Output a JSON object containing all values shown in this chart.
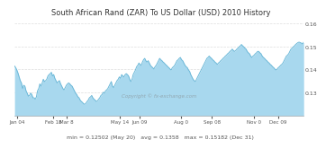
{
  "title": "South African Rand (ZAR) To US Dollar (USD) 2010 History",
  "title_fontsize": 6.0,
  "ylim": [
    0.12,
    0.16
  ],
  "yticks": [
    0.13,
    0.14,
    0.15,
    0.16
  ],
  "ytick_top": 0.16,
  "line_color": "#6bb8d8",
  "fill_color": "#a8d8ee",
  "background_color": "#ffffff",
  "grid_color": "#dddddd",
  "footer_text": "min = 0.12502 (May 20)   avg = 0.1358   max = 0.15182 (Dec 31)",
  "footer_fontsize": 4.5,
  "watermark": "Copyright © fx-exchange.com",
  "x_tick_labels": [
    "Jan 04",
    "Feb 18",
    "Mar 8",
    "May 14",
    "Jun 09",
    "Aug 0",
    "Sep 08",
    "Nov 0",
    "Dec 09"
  ],
  "x_tick_fracs": [
    0.008,
    0.133,
    0.18,
    0.364,
    0.434,
    0.575,
    0.682,
    0.829,
    0.912
  ],
  "values": [
    0.1415,
    0.1408,
    0.1398,
    0.1385,
    0.1368,
    0.1352,
    0.1342,
    0.1318,
    0.1332,
    0.1328,
    0.1308,
    0.1298,
    0.1285,
    0.1288,
    0.1298,
    0.1292,
    0.1278,
    0.1278,
    0.1272,
    0.1282,
    0.1308,
    0.1318,
    0.1338,
    0.1328,
    0.1342,
    0.1358,
    0.1348,
    0.1352,
    0.1358,
    0.1372,
    0.1378,
    0.1382,
    0.1388,
    0.1372,
    0.1378,
    0.1362,
    0.1352,
    0.1342,
    0.1348,
    0.1352,
    0.1338,
    0.1328,
    0.1318,
    0.1312,
    0.1322,
    0.1332,
    0.1338,
    0.1342,
    0.1338,
    0.1332,
    0.1328,
    0.1318,
    0.1308,
    0.1298,
    0.1292,
    0.1282,
    0.1278,
    0.1268,
    0.1262,
    0.1258,
    0.1252,
    0.125,
    0.1255,
    0.1262,
    0.1268,
    0.1278,
    0.1282,
    0.1288,
    0.1278,
    0.1272,
    0.1268,
    0.1262,
    0.1265,
    0.1272,
    0.1278,
    0.1288,
    0.1292,
    0.1302,
    0.1298,
    0.1308,
    0.1312,
    0.1318,
    0.1328,
    0.1338,
    0.1348,
    0.1328,
    0.1322,
    0.1332,
    0.1342,
    0.1352,
    0.1358,
    0.1368,
    0.1362,
    0.1378,
    0.1372,
    0.1368,
    0.1378,
    0.1382,
    0.1378,
    0.1372,
    0.1358,
    0.1348,
    0.1358,
    0.1378,
    0.1388,
    0.1398,
    0.1412,
    0.1418,
    0.1428,
    0.1422,
    0.1418,
    0.1432,
    0.1442,
    0.1448,
    0.1438,
    0.1432,
    0.1438,
    0.1428,
    0.1418,
    0.1412,
    0.1408,
    0.1402,
    0.1412,
    0.1418,
    0.1428,
    0.1438,
    0.1448,
    0.1442,
    0.1438,
    0.1432,
    0.1428,
    0.1422,
    0.1418,
    0.1412,
    0.1408,
    0.1402,
    0.1398,
    0.1408,
    0.1412,
    0.1418,
    0.1428,
    0.1438,
    0.1442,
    0.1448,
    0.1452,
    0.1442,
    0.1438,
    0.1428,
    0.1418,
    0.1412,
    0.1408,
    0.1398,
    0.1392,
    0.1378,
    0.1368,
    0.1358,
    0.1352,
    0.1348,
    0.1358,
    0.1368,
    0.1378,
    0.1388,
    0.1398,
    0.1408,
    0.1418,
    0.1428,
    0.1438,
    0.1448,
    0.1452,
    0.1458,
    0.1452,
    0.1448,
    0.1442,
    0.1438,
    0.1432,
    0.1428,
    0.1422,
    0.1428,
    0.1432,
    0.1438,
    0.1442,
    0.1448,
    0.1452,
    0.1458,
    0.1462,
    0.1468,
    0.1472,
    0.1478,
    0.1482,
    0.1488,
    0.1482,
    0.1478,
    0.1482,
    0.1488,
    0.1492,
    0.1498,
    0.1502,
    0.1508,
    0.1502,
    0.1498,
    0.1492,
    0.1488,
    0.1478,
    0.1472,
    0.1468,
    0.1458,
    0.1452,
    0.1458,
    0.1462,
    0.1468,
    0.1472,
    0.1478,
    0.1478,
    0.1472,
    0.1468,
    0.1458,
    0.1452,
    0.1448,
    0.1442,
    0.1438,
    0.1432,
    0.1428,
    0.1422,
    0.1418,
    0.1412,
    0.1408,
    0.1402,
    0.1398,
    0.1402,
    0.1408,
    0.1412,
    0.1418,
    0.1422,
    0.1428,
    0.1438,
    0.1448,
    0.1458,
    0.1462,
    0.1468,
    0.1478,
    0.1488,
    0.1492,
    0.1498,
    0.1502,
    0.1508,
    0.1512,
    0.1516,
    0.1518,
    0.1516,
    0.1514,
    0.151,
    0.1518
  ]
}
